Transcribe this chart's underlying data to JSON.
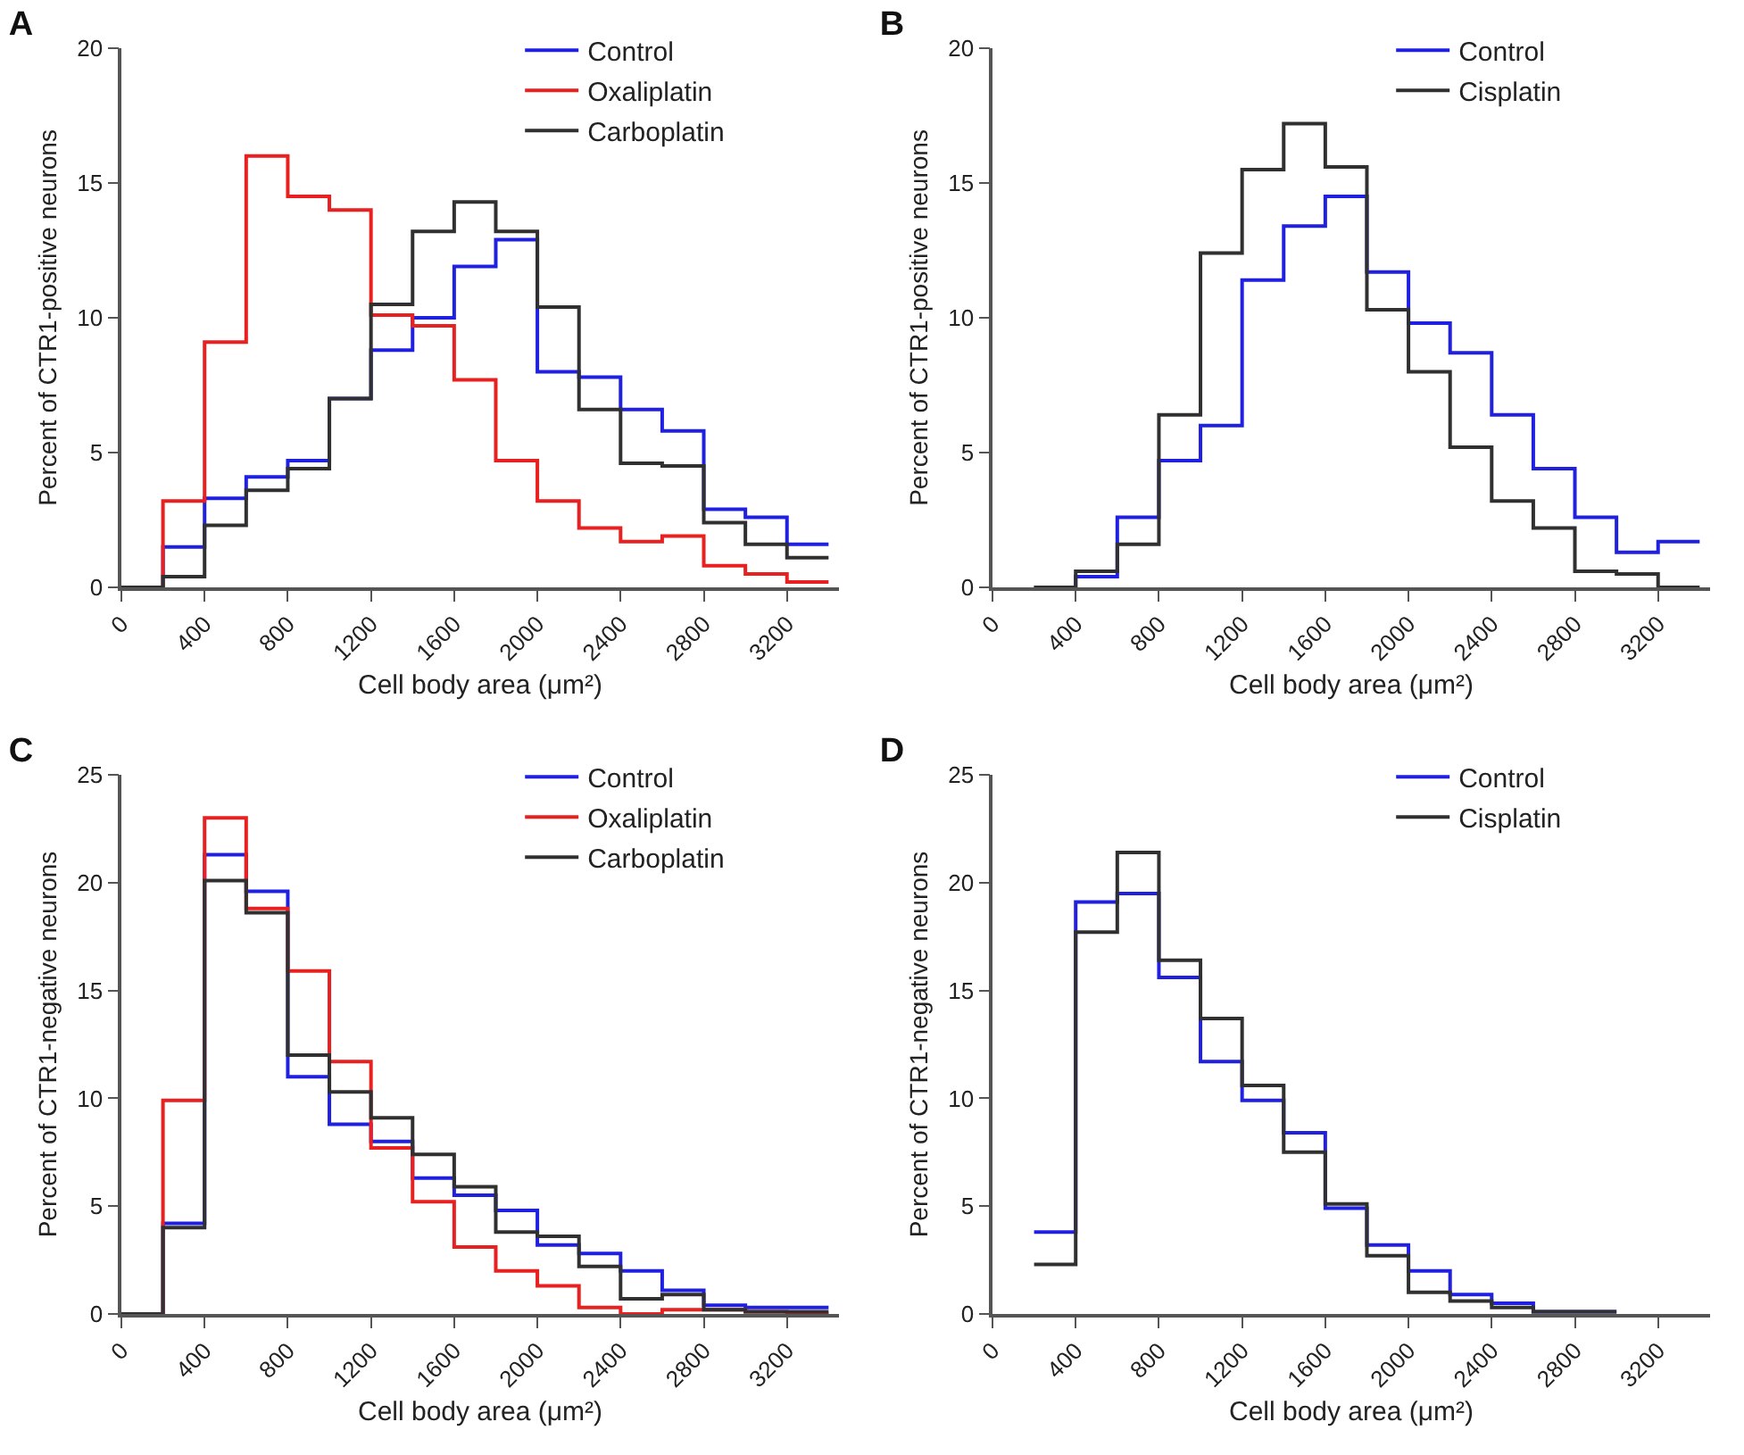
{
  "chart_data": [
    {
      "type": "histogram",
      "title": "A",
      "xlabel": "Cell body area (μm²)",
      "ylabel": "Percent of CTR1-positive neurons",
      "bins": [
        0,
        200,
        400,
        600,
        800,
        1000,
        1200,
        1400,
        1600,
        1800,
        2000,
        2200,
        2400,
        2600,
        2800,
        3000,
        3200,
        3400
      ],
      "xlim": [
        0,
        3450
      ],
      "xticks": [
        0,
        400,
        800,
        1200,
        1600,
        2000,
        2400,
        2800,
        3200
      ],
      "ylim": [
        0,
        20
      ],
      "yticks": [
        0,
        5,
        10,
        15,
        20
      ],
      "grid": false,
      "legend": "top right",
      "series": [
        {
          "name": "Control",
          "color": "#2020e0",
          "values": [
            0,
            1.5,
            3.3,
            4.1,
            4.7,
            7.0,
            8.8,
            10.0,
            11.9,
            12.9,
            8.0,
            7.8,
            6.6,
            5.8,
            2.9,
            2.6,
            1.6
          ]
        },
        {
          "name": "Oxaliplatin",
          "color": "#e82020",
          "values": [
            0,
            3.2,
            9.1,
            16.0,
            14.5,
            14.0,
            10.1,
            9.7,
            7.7,
            4.7,
            3.2,
            2.2,
            1.7,
            1.9,
            0.8,
            0.5,
            0.2
          ]
        },
        {
          "name": "Carboplatin",
          "color": "#303030",
          "values": [
            0,
            0.4,
            2.3,
            3.6,
            4.4,
            7.0,
            10.5,
            13.2,
            14.3,
            13.2,
            10.4,
            6.6,
            4.6,
            4.5,
            2.4,
            1.6,
            1.1
          ]
        }
      ]
    },
    {
      "type": "histogram",
      "title": "B",
      "xlabel": "Cell body area (μm²)",
      "ylabel": "Percent of CTR1-positive neurons",
      "bins": [
        200,
        400,
        600,
        800,
        1000,
        1200,
        1400,
        1600,
        1800,
        2000,
        2200,
        2400,
        2600,
        2800,
        3000,
        3200,
        3400
      ],
      "xlim": [
        0,
        3450
      ],
      "xticks": [
        0,
        400,
        800,
        1200,
        1600,
        2000,
        2400,
        2800,
        3200
      ],
      "ylim": [
        0,
        20
      ],
      "yticks": [
        0,
        5,
        10,
        15,
        20
      ],
      "grid": false,
      "legend": "top right",
      "series": [
        {
          "name": "Control",
          "color": "#2020e0",
          "values": [
            0,
            0.4,
            2.6,
            4.7,
            6.0,
            11.4,
            13.4,
            14.5,
            11.7,
            9.8,
            8.7,
            6.4,
            4.4,
            2.6,
            1.3,
            1.7
          ]
        },
        {
          "name": "Cisplatin",
          "color": "#303030",
          "values": [
            0,
            0.6,
            1.6,
            6.4,
            12.4,
            15.5,
            17.2,
            15.6,
            10.3,
            8.0,
            5.2,
            3.2,
            2.2,
            0.6,
            0.5,
            0
          ]
        }
      ]
    },
    {
      "type": "histogram",
      "title": "C",
      "xlabel": "Cell body area (μm²)",
      "ylabel": "Percent of CTR1-negative neurons",
      "bins": [
        0,
        200,
        400,
        600,
        800,
        1000,
        1200,
        1400,
        1600,
        1800,
        2000,
        2200,
        2400,
        2600,
        2800,
        3000,
        3200,
        3400
      ],
      "xlim": [
        0,
        3450
      ],
      "xticks": [
        0,
        400,
        800,
        1200,
        1600,
        2000,
        2400,
        2800,
        3200
      ],
      "ylim": [
        0,
        25
      ],
      "yticks": [
        0,
        5,
        10,
        15,
        20,
        25
      ],
      "grid": false,
      "legend": "top right",
      "series": [
        {
          "name": "Control",
          "color": "#2020e0",
          "values": [
            0,
            4.2,
            21.3,
            19.6,
            11.0,
            8.8,
            8.0,
            6.3,
            5.5,
            4.8,
            3.2,
            2.8,
            2.0,
            1.1,
            0.4,
            0.3,
            0.3
          ]
        },
        {
          "name": "Oxaliplatin",
          "color": "#e82020",
          "values": [
            0,
            9.9,
            23.0,
            18.8,
            15.9,
            11.7,
            7.7,
            5.2,
            3.1,
            2.0,
            1.3,
            0.3,
            0,
            0.2,
            0.2,
            0.1,
            0
          ]
        },
        {
          "name": "Carboplatin",
          "color": "#303030",
          "values": [
            0,
            4.0,
            20.1,
            18.6,
            12.0,
            10.3,
            9.1,
            7.4,
            5.9,
            3.8,
            3.6,
            2.2,
            0.7,
            0.9,
            0.2,
            0.1,
            0.1
          ]
        }
      ]
    },
    {
      "type": "histogram",
      "title": "D",
      "xlabel": "Cell body area (μm²)",
      "ylabel": "Percent of CTR1-negative neurons",
      "bins": [
        200,
        400,
        600,
        800,
        1000,
        1200,
        1400,
        1600,
        1800,
        2000,
        2200,
        2400,
        2600,
        2800,
        3000
      ],
      "xlim": [
        0,
        3450
      ],
      "xticks": [
        0,
        400,
        800,
        1200,
        1600,
        2000,
        2400,
        2800,
        3200
      ],
      "ylim": [
        0,
        25
      ],
      "yticks": [
        0,
        5,
        10,
        15,
        20,
        25
      ],
      "grid": false,
      "legend": "top right",
      "series": [
        {
          "name": "Control",
          "color": "#2020e0",
          "values": [
            3.8,
            19.1,
            19.5,
            15.6,
            11.7,
            9.9,
            8.4,
            4.9,
            3.2,
            2.0,
            0.9,
            0.5,
            0.1,
            0.1
          ]
        },
        {
          "name": "Cisplatin",
          "color": "#303030",
          "values": [
            2.3,
            17.7,
            21.4,
            16.4,
            13.7,
            10.6,
            7.5,
            5.1,
            2.7,
            1.0,
            0.6,
            0.3,
            0.1,
            0.1
          ]
        }
      ]
    }
  ]
}
